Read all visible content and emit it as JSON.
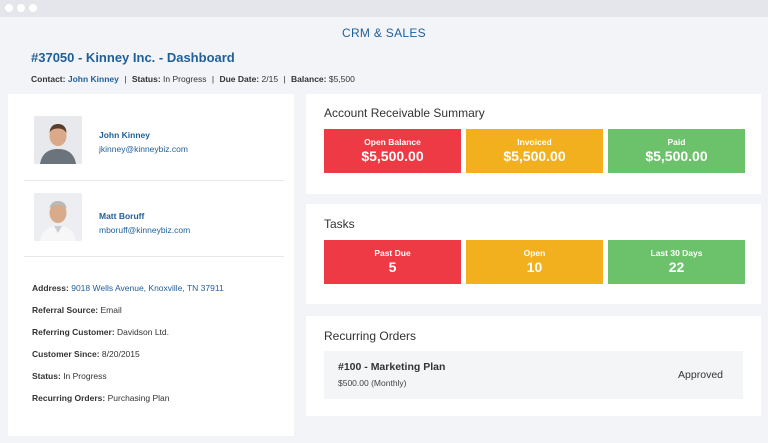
{
  "app": {
    "title": "CRM & SALES"
  },
  "page": {
    "title": "#37050 - Kinney Inc. - Dashboard"
  },
  "meta": {
    "contact_label": "Contact:",
    "contact_value": "John Kinney",
    "status_label": "Status:",
    "status_value": "In Progress",
    "due_label": "Due Date:",
    "due_value": "2/15",
    "balance_label": "Balance:",
    "balance_value": "$5,500",
    "separator": "|"
  },
  "contacts": [
    {
      "name": "John Kinney",
      "email": "jkinney@kinneybiz.com"
    },
    {
      "name": "Matt Boruff",
      "email": "mboruff@kinneybiz.com"
    }
  ],
  "details": {
    "address_label": "Address:",
    "address_value": "9018 Wells Avenue, Knoxville, TN 37911",
    "referral_label": "Referral Source:",
    "referral_value": "Email",
    "referring_label": "Referring Customer:",
    "referring_value": "Davidson Ltd.",
    "since_label": "Customer Since:",
    "since_value": "8/20/2015",
    "status_label": "Status:",
    "status_value": "In Progress",
    "recurring_label": "Recurring Orders:",
    "recurring_value": "Purchasing Plan"
  },
  "ar_summary": {
    "title": "Account Receivable Summary",
    "tiles": [
      {
        "label": "Open Balance",
        "value": "$5,500.00",
        "color": "#ee3a45"
      },
      {
        "label": "Invoiced",
        "value": "$5,500.00",
        "color": "#f2b01e"
      },
      {
        "label": "Paid",
        "value": "$5,500.00",
        "color": "#6cc26a"
      }
    ]
  },
  "tasks": {
    "title": "Tasks",
    "tiles": [
      {
        "label": "Past Due",
        "value": "5",
        "color": "#ee3a45"
      },
      {
        "label": "Open",
        "value": "10",
        "color": "#f2b01e"
      },
      {
        "label": "Last 30 Days",
        "value": "22",
        "color": "#6cc26a"
      }
    ]
  },
  "recurring_orders": {
    "title": "Recurring Orders",
    "items": [
      {
        "title": "#100 - Marketing Plan",
        "amount": "$500.00 (Monthly)",
        "status": "Approved"
      }
    ]
  }
}
